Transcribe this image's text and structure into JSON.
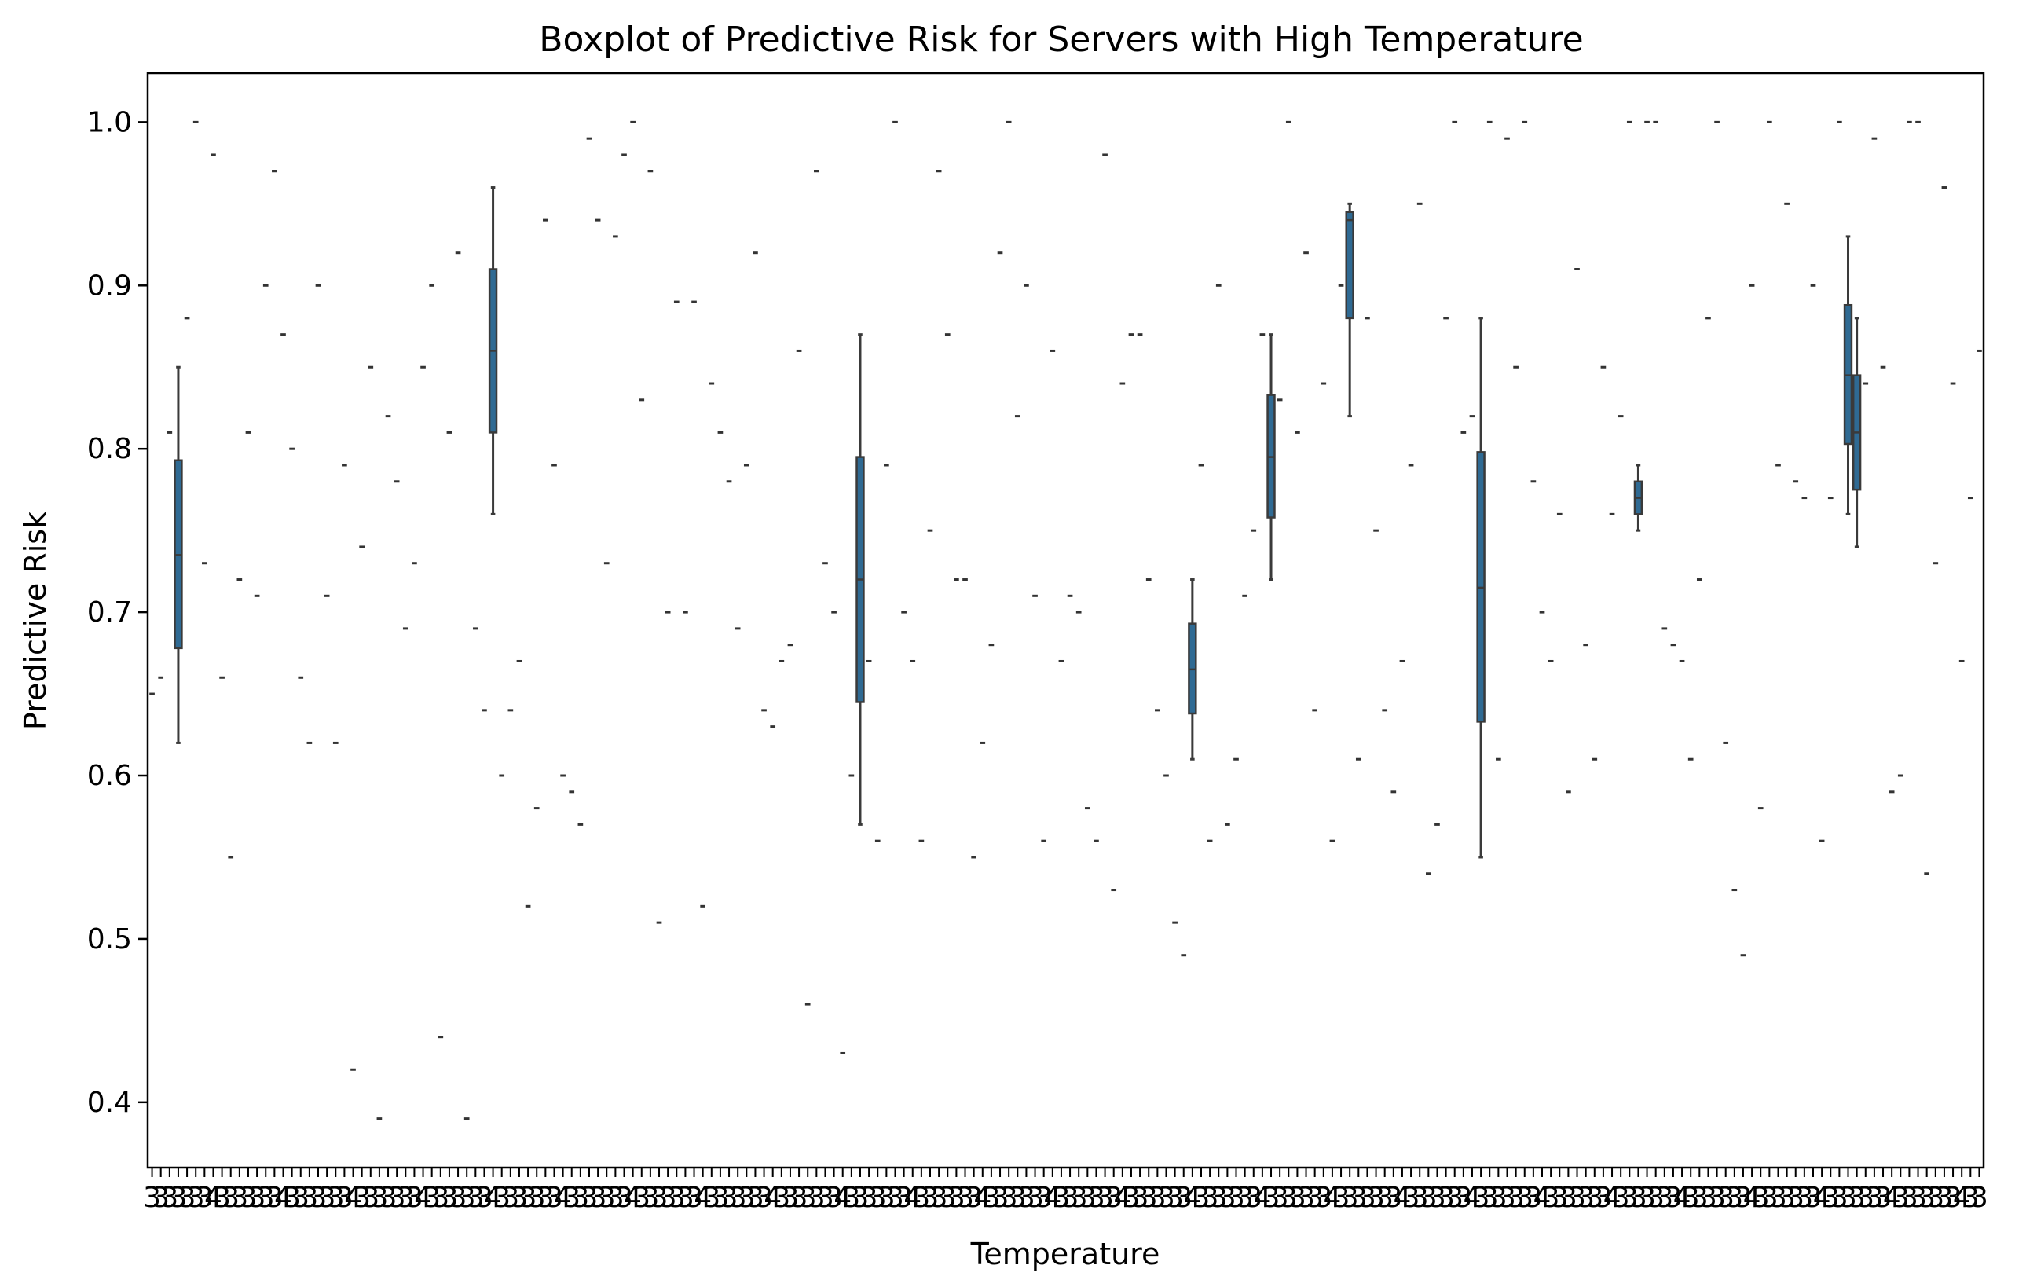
{
  "chart_data": {
    "type": "boxplot",
    "title": "Boxplot of Predictive Risk for Servers with High Temperature",
    "xlabel": "Temperature",
    "ylabel": "Predictive Risk",
    "ylim": [
      0.36,
      1.03
    ],
    "yticks": [
      0.4,
      0.5,
      0.6,
      0.7,
      0.8,
      0.9,
      1.0
    ],
    "ytick_labels": [
      "0.4",
      "0.5",
      "0.6",
      "0.7",
      "0.8",
      "0.9",
      "1.0"
    ],
    "xtick_labels_visible": [
      "3",
      "3",
      "3",
      "3",
      "3",
      "3",
      "3",
      "4"
    ],
    "grid": false,
    "box_color": "#2f6a93",
    "category_count": 210,
    "single_points": [
      {
        "i": 0,
        "v": 0.65
      },
      {
        "i": 1,
        "v": 0.66
      },
      {
        "i": 2,
        "v": 0.81
      },
      {
        "i": 4,
        "v": 0.88
      },
      {
        "i": 5,
        "v": 1.0
      },
      {
        "i": 6,
        "v": 0.73
      },
      {
        "i": 7,
        "v": 0.98
      },
      {
        "i": 8,
        "v": 0.66
      },
      {
        "i": 9,
        "v": 0.55
      },
      {
        "i": 10,
        "v": 0.72
      },
      {
        "i": 11,
        "v": 0.81
      },
      {
        "i": 12,
        "v": 0.71
      },
      {
        "i": 13,
        "v": 0.9
      },
      {
        "i": 14,
        "v": 0.97
      },
      {
        "i": 15,
        "v": 0.87
      },
      {
        "i": 16,
        "v": 0.8
      },
      {
        "i": 17,
        "v": 0.66
      },
      {
        "i": 18,
        "v": 0.62
      },
      {
        "i": 19,
        "v": 0.9
      },
      {
        "i": 20,
        "v": 0.71
      },
      {
        "i": 21,
        "v": 0.62
      },
      {
        "i": 22,
        "v": 0.79
      },
      {
        "i": 23,
        "v": 0.42
      },
      {
        "i": 24,
        "v": 0.74
      },
      {
        "i": 25,
        "v": 0.85
      },
      {
        "i": 26,
        "v": 0.39
      },
      {
        "i": 27,
        "v": 0.82
      },
      {
        "i": 28,
        "v": 0.78
      },
      {
        "i": 29,
        "v": 0.69
      },
      {
        "i": 30,
        "v": 0.73
      },
      {
        "i": 31,
        "v": 0.85
      },
      {
        "i": 32,
        "v": 0.9
      },
      {
        "i": 33,
        "v": 0.44
      },
      {
        "i": 34,
        "v": 0.81
      },
      {
        "i": 35,
        "v": 0.92
      },
      {
        "i": 36,
        "v": 0.39
      },
      {
        "i": 37,
        "v": 0.69
      },
      {
        "i": 38,
        "v": 0.64
      },
      {
        "i": 40,
        "v": 0.6
      },
      {
        "i": 41,
        "v": 0.64
      },
      {
        "i": 42,
        "v": 0.67
      },
      {
        "i": 43,
        "v": 0.52
      },
      {
        "i": 44,
        "v": 0.58
      },
      {
        "i": 45,
        "v": 0.94
      },
      {
        "i": 46,
        "v": 0.79
      },
      {
        "i": 47,
        "v": 0.6
      },
      {
        "i": 48,
        "v": 0.59
      },
      {
        "i": 49,
        "v": 0.57
      },
      {
        "i": 50,
        "v": 0.99
      },
      {
        "i": 51,
        "v": 0.94
      },
      {
        "i": 52,
        "v": 0.73
      },
      {
        "i": 53,
        "v": 0.93
      },
      {
        "i": 54,
        "v": 0.98
      },
      {
        "i": 55,
        "v": 1.0
      },
      {
        "i": 56,
        "v": 0.83
      },
      {
        "i": 57,
        "v": 0.97
      },
      {
        "i": 58,
        "v": 0.51
      },
      {
        "i": 59,
        "v": 0.7
      },
      {
        "i": 60,
        "v": 0.89
      },
      {
        "i": 61,
        "v": 0.7
      },
      {
        "i": 62,
        "v": 0.89
      },
      {
        "i": 63,
        "v": 0.52
      },
      {
        "i": 64,
        "v": 0.84
      },
      {
        "i": 65,
        "v": 0.81
      },
      {
        "i": 66,
        "v": 0.78
      },
      {
        "i": 67,
        "v": 0.69
      },
      {
        "i": 68,
        "v": 0.79
      },
      {
        "i": 69,
        "v": 0.92
      },
      {
        "i": 70,
        "v": 0.64
      },
      {
        "i": 71,
        "v": 0.63
      },
      {
        "i": 72,
        "v": 0.67
      },
      {
        "i": 73,
        "v": 0.68
      },
      {
        "i": 74,
        "v": 0.86
      },
      {
        "i": 75,
        "v": 0.46
      },
      {
        "i": 76,
        "v": 0.97
      },
      {
        "i": 77,
        "v": 0.73
      },
      {
        "i": 78,
        "v": 0.7
      },
      {
        "i": 79,
        "v": 0.43
      },
      {
        "i": 80,
        "v": 0.6
      },
      {
        "i": 82,
        "v": 0.67
      },
      {
        "i": 83,
        "v": 0.56
      },
      {
        "i": 84,
        "v": 0.79
      },
      {
        "i": 85,
        "v": 1.0
      },
      {
        "i": 86,
        "v": 0.7
      },
      {
        "i": 87,
        "v": 0.67
      },
      {
        "i": 88,
        "v": 0.56
      },
      {
        "i": 89,
        "v": 0.75
      },
      {
        "i": 90,
        "v": 0.97
      },
      {
        "i": 91,
        "v": 0.87
      },
      {
        "i": 92,
        "v": 0.72
      },
      {
        "i": 93,
        "v": 0.72
      },
      {
        "i": 94,
        "v": 0.55
      },
      {
        "i": 95,
        "v": 0.62
      },
      {
        "i": 96,
        "v": 0.68
      },
      {
        "i": 97,
        "v": 0.92
      },
      {
        "i": 98,
        "v": 1.0
      },
      {
        "i": 99,
        "v": 0.82
      },
      {
        "i": 100,
        "v": 0.9
      },
      {
        "i": 101,
        "v": 0.71
      },
      {
        "i": 102,
        "v": 0.56
      },
      {
        "i": 103,
        "v": 0.86
      },
      {
        "i": 104,
        "v": 0.67
      },
      {
        "i": 105,
        "v": 0.71
      },
      {
        "i": 106,
        "v": 0.7
      },
      {
        "i": 107,
        "v": 0.58
      },
      {
        "i": 108,
        "v": 0.56
      },
      {
        "i": 109,
        "v": 0.98
      },
      {
        "i": 110,
        "v": 0.53
      },
      {
        "i": 111,
        "v": 0.84
      },
      {
        "i": 112,
        "v": 0.87
      },
      {
        "i": 113,
        "v": 0.87
      },
      {
        "i": 114,
        "v": 0.72
      },
      {
        "i": 115,
        "v": 0.64
      },
      {
        "i": 116,
        "v": 0.6
      },
      {
        "i": 117,
        "v": 0.51
      },
      {
        "i": 118,
        "v": 0.49
      },
      {
        "i": 120,
        "v": 0.79
      },
      {
        "i": 121,
        "v": 0.56
      },
      {
        "i": 122,
        "v": 0.9
      },
      {
        "i": 123,
        "v": 0.57
      },
      {
        "i": 124,
        "v": 0.61
      },
      {
        "i": 125,
        "v": 0.71
      },
      {
        "i": 126,
        "v": 0.75
      },
      {
        "i": 127,
        "v": 0.87
      },
      {
        "i": 129,
        "v": 0.83
      },
      {
        "i": 130,
        "v": 1.0
      },
      {
        "i": 131,
        "v": 0.81
      },
      {
        "i": 132,
        "v": 0.92
      },
      {
        "i": 133,
        "v": 0.64
      },
      {
        "i": 134,
        "v": 0.84
      },
      {
        "i": 135,
        "v": 0.56
      },
      {
        "i": 136,
        "v": 0.9
      },
      {
        "i": 138,
        "v": 0.61
      },
      {
        "i": 139,
        "v": 0.88
      },
      {
        "i": 140,
        "v": 0.75
      },
      {
        "i": 141,
        "v": 0.64
      },
      {
        "i": 142,
        "v": 0.59
      },
      {
        "i": 143,
        "v": 0.67
      },
      {
        "i": 144,
        "v": 0.79
      },
      {
        "i": 145,
        "v": 0.95
      },
      {
        "i": 146,
        "v": 0.54
      },
      {
        "i": 147,
        "v": 0.57
      },
      {
        "i": 148,
        "v": 0.88
      },
      {
        "i": 149,
        "v": 1.0
      },
      {
        "i": 150,
        "v": 0.81
      },
      {
        "i": 151,
        "v": 0.82
      },
      {
        "i": 153,
        "v": 1.0
      },
      {
        "i": 154,
        "v": 0.61
      },
      {
        "i": 155,
        "v": 0.99
      },
      {
        "i": 156,
        "v": 0.85
      },
      {
        "i": 157,
        "v": 1.0
      },
      {
        "i": 158,
        "v": 0.78
      },
      {
        "i": 159,
        "v": 0.7
      },
      {
        "i": 160,
        "v": 0.67
      },
      {
        "i": 161,
        "v": 0.76
      },
      {
        "i": 162,
        "v": 0.59
      },
      {
        "i": 163,
        "v": 0.91
      },
      {
        "i": 164,
        "v": 0.68
      },
      {
        "i": 165,
        "v": 0.61
      },
      {
        "i": 166,
        "v": 0.85
      },
      {
        "i": 167,
        "v": 0.76
      },
      {
        "i": 168,
        "v": 0.82
      },
      {
        "i": 169,
        "v": 1.0
      },
      {
        "i": 171,
        "v": 1.0
      },
      {
        "i": 172,
        "v": 1.0
      },
      {
        "i": 173,
        "v": 0.69
      },
      {
        "i": 174,
        "v": 0.68
      },
      {
        "i": 175,
        "v": 0.67
      },
      {
        "i": 176,
        "v": 0.61
      },
      {
        "i": 177,
        "v": 0.72
      },
      {
        "i": 178,
        "v": 0.88
      },
      {
        "i": 179,
        "v": 1.0
      },
      {
        "i": 180,
        "v": 0.62
      },
      {
        "i": 181,
        "v": 0.53
      },
      {
        "i": 182,
        "v": 0.49
      },
      {
        "i": 183,
        "v": 0.9
      },
      {
        "i": 184,
        "v": 0.58
      },
      {
        "i": 185,
        "v": 1.0
      },
      {
        "i": 186,
        "v": 0.79
      },
      {
        "i": 187,
        "v": 0.95
      },
      {
        "i": 188,
        "v": 0.78
      },
      {
        "i": 189,
        "v": 0.77
      },
      {
        "i": 190,
        "v": 0.9
      },
      {
        "i": 191,
        "v": 0.56
      },
      {
        "i": 192,
        "v": 0.77
      },
      {
        "i": 193,
        "v": 1.0
      },
      {
        "i": 196,
        "v": 0.84
      },
      {
        "i": 197,
        "v": 0.99
      },
      {
        "i": 198,
        "v": 0.85
      },
      {
        "i": 199,
        "v": 0.59
      },
      {
        "i": 200,
        "v": 0.6
      },
      {
        "i": 201,
        "v": 1.0
      },
      {
        "i": 202,
        "v": 1.0
      },
      {
        "i": 203,
        "v": 0.54
      },
      {
        "i": 204,
        "v": 0.73
      },
      {
        "i": 205,
        "v": 0.96
      },
      {
        "i": 206,
        "v": 0.84
      },
      {
        "i": 207,
        "v": 0.67
      },
      {
        "i": 208,
        "v": 0.77
      },
      {
        "i": 209,
        "v": 0.86
      }
    ],
    "boxes": [
      {
        "i": 3,
        "min": 0.62,
        "q1": 0.678,
        "median": 0.735,
        "q3": 0.793,
        "max": 0.85
      },
      {
        "i": 39,
        "min": 0.76,
        "q1": 0.81,
        "median": 0.86,
        "q3": 0.91,
        "max": 0.96
      },
      {
        "i": 81,
        "min": 0.57,
        "q1": 0.645,
        "median": 0.72,
        "q3": 0.795,
        "max": 0.87
      },
      {
        "i": 119,
        "min": 0.61,
        "q1": 0.638,
        "median": 0.665,
        "q3": 0.693,
        "max": 0.72
      },
      {
        "i": 128,
        "min": 0.72,
        "q1": 0.758,
        "median": 0.795,
        "q3": 0.833,
        "max": 0.87
      },
      {
        "i": 137,
        "min": 0.82,
        "q1": 0.88,
        "median": 0.94,
        "q3": 0.945,
        "max": 0.95
      },
      {
        "i": 152,
        "min": 0.55,
        "q1": 0.633,
        "median": 0.715,
        "q3": 0.798,
        "max": 0.88
      },
      {
        "i": 170,
        "min": 0.75,
        "q1": 0.76,
        "median": 0.77,
        "q3": 0.78,
        "max": 0.79
      },
      {
        "i": 194,
        "min": 0.76,
        "q1": 0.803,
        "median": 0.845,
        "q3": 0.888,
        "max": 0.93
      },
      {
        "i": 195,
        "min": 0.74,
        "q1": 0.775,
        "median": 0.81,
        "q3": 0.845,
        "max": 0.88
      }
    ]
  }
}
